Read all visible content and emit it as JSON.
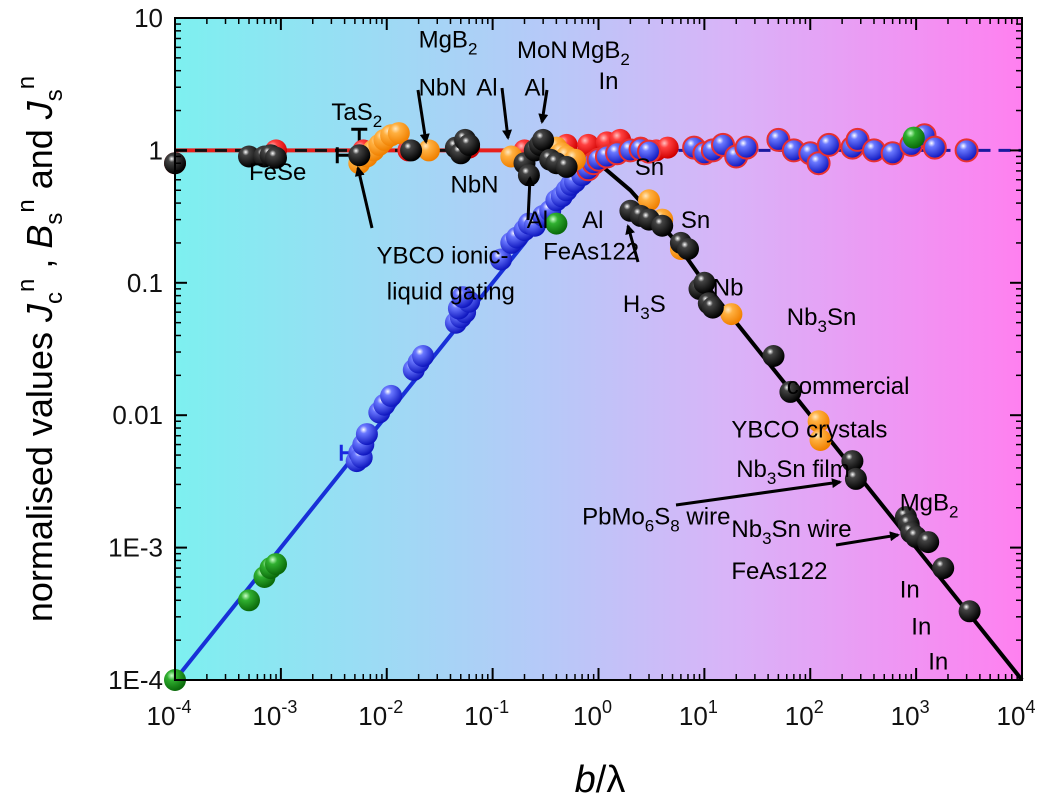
{
  "chart_data": {
    "type": "scatter",
    "title": "",
    "xlabel": "b/λ",
    "ylabel": "normalised values  J_c^n , B_s^n and J_s^n",
    "x_scale": "log",
    "y_scale": "log",
    "xlim": [
      0.0001,
      10000
    ],
    "ylim": [
      0.0001,
      10
    ],
    "x_ticks": [
      {
        "value": 0.0001,
        "base": "10",
        "exp": "-4"
      },
      {
        "value": 0.001,
        "base": "10",
        "exp": "-3"
      },
      {
        "value": 0.01,
        "base": "10",
        "exp": "-2"
      },
      {
        "value": 0.1,
        "base": "10",
        "exp": "-1"
      },
      {
        "value": 1,
        "base": "10",
        "exp": "0"
      },
      {
        "value": 10,
        "base": "10",
        "exp": "1"
      },
      {
        "value": 100,
        "base": "10",
        "exp": "2"
      },
      {
        "value": 1000,
        "base": "10",
        "exp": "3"
      },
      {
        "value": 10000,
        "base": "10",
        "exp": "4"
      }
    ],
    "y_ticks": [
      {
        "value": 10,
        "label": "10"
      },
      {
        "value": 1,
        "label": "1"
      },
      {
        "value": 0.1,
        "label": "0.1"
      },
      {
        "value": 0.01,
        "label": "0.01"
      },
      {
        "value": 0.001,
        "label": "1E-3"
      },
      {
        "value": 0.0001,
        "label": "1E-4"
      }
    ],
    "background_gradient": [
      "#7df0f0",
      "#b8c8f8",
      "#d8b4f8",
      "#ff80f0"
    ],
    "lines": [
      {
        "name": "B_s^n = 1",
        "color": "#e8201c",
        "style": "solid",
        "points": [
          [
            0.0001,
            1
          ],
          [
            1,
            1
          ]
        ]
      },
      {
        "name": "B_s^n = 1 (dashed)",
        "color": "#1a1aa0",
        "style": "dashed",
        "points": [
          [
            1,
            1
          ],
          [
            10000,
            1
          ]
        ]
      },
      {
        "name": "J_s^n = 1 (dashed)",
        "color": "#111111",
        "style": "dashed",
        "points": [
          [
            0.0001,
            1
          ],
          [
            0.06,
            1
          ]
        ]
      },
      {
        "name": "J_c^n rising",
        "color": "#1830d8",
        "style": "solid",
        "points": [
          [
            0.0001,
            0.0001
          ],
          [
            0.2,
            0.2
          ],
          [
            0.5,
            0.55
          ],
          [
            1,
            0.85
          ],
          [
            1.5,
            0.97
          ]
        ]
      },
      {
        "name": "J_c^n falling",
        "color": "#000000",
        "style": "solid",
        "points": [
          [
            0.5,
            0.9
          ],
          [
            1,
            0.8
          ],
          [
            2,
            0.5
          ],
          [
            5,
            0.22
          ],
          [
            10,
            0.1
          ],
          [
            100,
            0.01
          ],
          [
            1000,
            0.001
          ],
          [
            10000,
            0.0001
          ]
        ]
      }
    ],
    "series": [
      {
        "name": "blue",
        "color": "#1a28e0",
        "points": [
          [
            0.0052,
            0.0045
          ],
          [
            0.0055,
            0.0052
          ],
          [
            0.0058,
            0.0048
          ],
          [
            0.006,
            0.006
          ],
          [
            0.0065,
            0.0072
          ],
          [
            0.0085,
            0.0105
          ],
          [
            0.0095,
            0.012
          ],
          [
            0.011,
            0.014
          ],
          [
            0.018,
            0.022
          ],
          [
            0.02,
            0.025
          ],
          [
            0.022,
            0.028
          ],
          [
            0.045,
            0.05
          ],
          [
            0.05,
            0.055
          ],
          [
            0.055,
            0.06
          ],
          [
            0.048,
            0.064
          ],
          [
            0.06,
            0.072
          ],
          [
            0.052,
            0.078
          ],
          [
            0.12,
            0.15
          ],
          [
            0.15,
            0.2
          ],
          [
            0.17,
            0.22
          ],
          [
            0.2,
            0.25
          ],
          [
            0.22,
            0.28
          ],
          [
            0.25,
            0.27
          ],
          [
            0.3,
            0.32
          ],
          [
            0.35,
            0.35
          ],
          [
            0.4,
            0.42
          ],
          [
            0.45,
            0.45
          ],
          [
            0.5,
            0.5
          ],
          [
            0.55,
            0.55
          ],
          [
            0.6,
            0.58
          ],
          [
            0.7,
            0.65
          ],
          [
            0.8,
            0.72
          ],
          [
            0.9,
            0.8
          ],
          [
            1,
            0.85
          ],
          [
            1.2,
            0.9
          ],
          [
            1.5,
            0.95
          ],
          [
            2,
            1.0
          ],
          [
            2.5,
            1.02
          ],
          [
            3,
            0.98
          ],
          [
            8,
            1.05
          ],
          [
            10,
            0.95
          ],
          [
            12,
            1.0
          ],
          [
            15,
            1.1
          ],
          [
            20,
            0.9
          ],
          [
            25,
            1.05
          ],
          [
            50,
            1.2
          ],
          [
            70,
            1.0
          ],
          [
            100,
            0.95
          ],
          [
            120,
            0.8
          ],
          [
            150,
            1.1
          ],
          [
            250,
            1.05
          ],
          [
            280,
            1.2
          ],
          [
            400,
            1.0
          ],
          [
            600,
            0.95
          ],
          [
            900,
            1.1
          ],
          [
            1200,
            1.3
          ],
          [
            1500,
            1.05
          ],
          [
            3000,
            1.0
          ]
        ]
      },
      {
        "name": "black",
        "color": "#000000",
        "points": [
          [
            0.0001,
            0.8
          ],
          [
            0.0005,
            0.9
          ],
          [
            0.0007,
            0.9
          ],
          [
            0.0008,
            0.92
          ],
          [
            0.0009,
            0.88
          ],
          [
            0.0055,
            0.92
          ],
          [
            0.017,
            1.0
          ],
          [
            0.045,
            1.05
          ],
          [
            0.05,
            0.95
          ],
          [
            0.055,
            1.2
          ],
          [
            0.06,
            1.1
          ],
          [
            0.2,
            0.8
          ],
          [
            0.22,
            0.65
          ],
          [
            0.25,
            1.0
          ],
          [
            0.28,
            1.1
          ],
          [
            0.3,
            1.2
          ],
          [
            0.35,
            0.85
          ],
          [
            0.4,
            0.8
          ],
          [
            0.5,
            0.75
          ],
          [
            2,
            0.35
          ],
          [
            2.5,
            0.32
          ],
          [
            3,
            0.3
          ],
          [
            4,
            0.27
          ],
          [
            6,
            0.2
          ],
          [
            7,
            0.18
          ],
          [
            9,
            0.09
          ],
          [
            10,
            0.1
          ],
          [
            11,
            0.07
          ],
          [
            12,
            0.065
          ],
          [
            45,
            0.028
          ],
          [
            65,
            0.015
          ],
          [
            250,
            0.0045
          ],
          [
            270,
            0.0033
          ],
          [
            800,
            0.0017
          ],
          [
            850,
            0.0015
          ],
          [
            900,
            0.0013
          ],
          [
            1000,
            0.0012
          ],
          [
            1300,
            0.0011
          ],
          [
            1800,
            0.0007
          ],
          [
            3200,
            0.00033
          ]
        ]
      },
      {
        "name": "orange",
        "color": "#ff9a20",
        "points": [
          [
            0.0055,
            0.8
          ],
          [
            0.0065,
            0.9
          ],
          [
            0.0075,
            1.0
          ],
          [
            0.0085,
            1.1
          ],
          [
            0.0095,
            1.2
          ],
          [
            0.011,
            1.3
          ],
          [
            0.013,
            1.35
          ],
          [
            0.025,
            1.0
          ],
          [
            0.15,
            0.9
          ],
          [
            0.4,
            1.05
          ],
          [
            0.45,
            0.95
          ],
          [
            0.5,
            0.9
          ],
          [
            0.6,
            0.85
          ],
          [
            3,
            0.42
          ],
          [
            4,
            0.3
          ],
          [
            6,
            0.18
          ],
          [
            18,
            0.058
          ],
          [
            120,
            0.009
          ],
          [
            125,
            0.0065
          ]
        ]
      },
      {
        "name": "red",
        "color": "#ff2020",
        "points": [
          [
            0.0001,
            0.8
          ],
          [
            0.0009,
            1.0
          ],
          [
            0.006,
            1.0
          ],
          [
            0.016,
            1.0
          ],
          [
            0.06,
            1.05
          ],
          [
            0.2,
            1.0
          ],
          [
            0.3,
            1.1
          ],
          [
            0.5,
            1.1
          ],
          [
            0.8,
            1.1
          ],
          [
            1.2,
            1.15
          ],
          [
            1.6,
            1.2
          ],
          [
            2.5,
            1.05
          ],
          [
            3.5,
            1.0
          ],
          [
            4.5,
            1.05
          ]
        ]
      },
      {
        "name": "green",
        "color": "#1a9a1a",
        "points": [
          [
            0.0001,
            0.0001
          ],
          [
            0.0005,
            0.0004
          ],
          [
            0.0007,
            0.0006
          ],
          [
            0.0008,
            0.0007
          ],
          [
            0.0009,
            0.00075
          ],
          [
            0.4,
            0.28
          ],
          [
            950,
            1.25
          ]
        ]
      }
    ],
    "annotations": [
      {
        "id": "fese",
        "text": "FeSe",
        "x": 0.0005,
        "y": 0.6
      },
      {
        "id": "tas2",
        "text": "TaS",
        "sub": "2",
        "x": 0.003,
        "y": 1.7
      },
      {
        "id": "ybco-gating-1",
        "text": "YBCO ionic-",
        "x": 0.008,
        "y": 0.14
      },
      {
        "id": "ybco-gating-2",
        "text": "liquid gating",
        "x": 0.01,
        "y": 0.075
      },
      {
        "id": "mgb2-a",
        "text": "MgB",
        "sub": "2",
        "x": 0.02,
        "y": 6.0
      },
      {
        "id": "nbn-a",
        "text": "NbN",
        "x": 0.02,
        "y": 2.6
      },
      {
        "id": "nbn-b",
        "text": "NbN",
        "x": 0.04,
        "y": 0.48
      },
      {
        "id": "al-a",
        "text": "Al",
        "x": 0.07,
        "y": 2.6
      },
      {
        "id": "mon",
        "text": "MoN",
        "x": 0.17,
        "y": 5.0
      },
      {
        "id": "al-b",
        "text": "Al",
        "x": 0.2,
        "y": 2.6
      },
      {
        "id": "mgb2-b",
        "text": "MgB",
        "sub": "2",
        "x": 0.55,
        "y": 5.0
      },
      {
        "id": "in-a",
        "text": "In",
        "x": 1.0,
        "y": 2.9
      },
      {
        "id": "al-c",
        "text": "Al",
        "x": 0.21,
        "y": 0.26
      },
      {
        "id": "al-d",
        "text": "Al",
        "x": 0.7,
        "y": 0.26
      },
      {
        "id": "sn-a",
        "text": "Sn",
        "x": 2.2,
        "y": 0.65
      },
      {
        "id": "feas122-a",
        "text": "FeAs122",
        "x": 0.3,
        "y": 0.15
      },
      {
        "id": "sn-b",
        "text": "Sn",
        "x": 6.0,
        "y": 0.26
      },
      {
        "id": "h3s",
        "text": "H",
        "sub": "3",
        "tail": "S",
        "x": 1.7,
        "y": 0.06
      },
      {
        "id": "nb",
        "text": "Nb",
        "x": 12.0,
        "y": 0.08
      },
      {
        "id": "nb3sn-a",
        "text": "Nb",
        "sub": "3",
        "tail": "Sn",
        "x": 60.0,
        "y": 0.048
      },
      {
        "id": "commercial",
        "text": "commercial",
        "x": 60.0,
        "y": 0.0145
      },
      {
        "id": "ybco-crystals",
        "text": "YBCO crystals",
        "x": 18.0,
        "y": 0.0068
      },
      {
        "id": "nb3sn-film",
        "text": "Nb",
        "sub": "3",
        "tail": "Sn film",
        "x": 20.0,
        "y": 0.0034
      },
      {
        "id": "pbmo6s8",
        "text": "PbMo",
        "sub": "6",
        "mid": "S",
        "sub2": "8",
        "tail": " wire",
        "x": 0.7,
        "y": 0.0015
      },
      {
        "id": "nb3sn-wire",
        "text": "Nb",
        "sub": "3",
        "tail": "Sn wire",
        "x": 18.0,
        "y": 0.0012
      },
      {
        "id": "mgb2-c",
        "text": "MgB",
        "sub": "2",
        "x": 700.0,
        "y": 0.0019
      },
      {
        "id": "feas122-b",
        "text": "FeAs122",
        "x": 18.0,
        "y": 0.00058
      },
      {
        "id": "in-b",
        "text": "In",
        "x": 700.0,
        "y": 0.00042
      },
      {
        "id": "in-c",
        "text": "In",
        "x": 900.0,
        "y": 0.00022
      },
      {
        "id": "in-d",
        "text": "In",
        "x": 1300.0,
        "y": 0.00012
      }
    ]
  }
}
